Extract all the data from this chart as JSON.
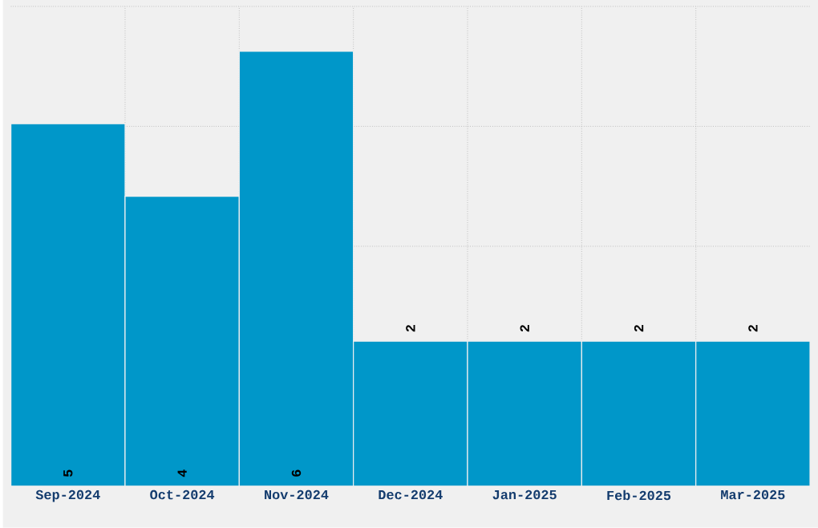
{
  "chart_data": {
    "type": "bar",
    "categories": [
      "Sep-2024",
      "Oct-2024",
      "Nov-2024",
      "Dec-2024",
      "Jan-2025",
      "Feb-2025",
      "Mar-2025"
    ],
    "values": [
      5,
      4,
      6,
      2,
      2,
      2,
      2
    ],
    "color": "#0097c9",
    "data_labels": true,
    "grid": true,
    "ylim": [
      0,
      6.62
    ],
    "yticks": [
      {
        "value": 1.655,
        "label": null
      },
      {
        "value": 3.31,
        "label": null
      },
      {
        "value": 4.965,
        "label": null
      },
      {
        "value": 6.62,
        "label": null
      }
    ],
    "tick_labels": "x"
  }
}
